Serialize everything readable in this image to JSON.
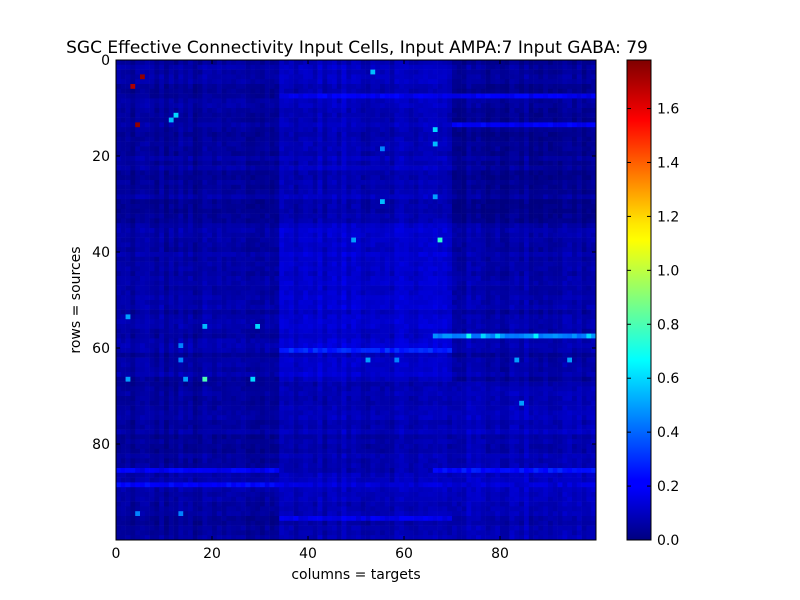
{
  "chart_data": {
    "type": "heatmap",
    "title": "SGC Effective Connectivity Input Cells, Input AMPA:7 Input GABA: 79",
    "xlabel": "columns = targets",
    "ylabel": "rows = sources",
    "x_range": [
      0,
      100
    ],
    "y_range": [
      0,
      100
    ],
    "y_inverted": true,
    "x_ticks": [
      "0",
      "20",
      "40",
      "60",
      "80"
    ],
    "y_ticks": [
      "0",
      "20",
      "40",
      "60",
      "80"
    ],
    "colorbar": {
      "colormap": "jet",
      "range": [
        0.0,
        1.78
      ],
      "ticks": [
        "0.0",
        "0.2",
        "0.4",
        "0.6",
        "0.8",
        "1.0",
        "1.2",
        "1.4",
        "1.6"
      ]
    },
    "background_level": 0.05,
    "block_structure": [
      {
        "rows": [
          0,
          34
        ],
        "cols": [
          0,
          34
        ],
        "value": 0.05
      },
      {
        "rows": [
          0,
          34
        ],
        "cols": [
          34,
          70
        ],
        "value": 0.1
      },
      {
        "rows": [
          0,
          34
        ],
        "cols": [
          70,
          100
        ],
        "value": 0.04
      },
      {
        "rows": [
          34,
          67
        ],
        "cols": [
          0,
          34
        ],
        "value": 0.06
      },
      {
        "rows": [
          34,
          67
        ],
        "cols": [
          34,
          70
        ],
        "value": 0.13
      },
      {
        "rows": [
          34,
          67
        ],
        "cols": [
          70,
          100
        ],
        "value": 0.07
      },
      {
        "rows": [
          67,
          100
        ],
        "cols": [
          0,
          34
        ],
        "value": 0.05
      },
      {
        "rows": [
          67,
          100
        ],
        "cols": [
          34,
          70
        ],
        "value": 0.09
      },
      {
        "rows": [
          67,
          100
        ],
        "cols": [
          70,
          100
        ],
        "value": 0.1
      }
    ],
    "row_bands": [
      {
        "row": 7,
        "cols": [
          34,
          100
        ],
        "value": 0.2
      },
      {
        "row": 13,
        "cols": [
          70,
          100
        ],
        "value": 0.2
      },
      {
        "row": 57,
        "cols": [
          66,
          100
        ],
        "value": 0.45
      },
      {
        "row": 60,
        "cols": [
          34,
          70
        ],
        "value": 0.28
      },
      {
        "row": 85,
        "cols": [
          0,
          34
        ],
        "value": 0.2
      },
      {
        "row": 85,
        "cols": [
          66,
          100
        ],
        "value": 0.25
      },
      {
        "row": 88,
        "cols": [
          0,
          34
        ],
        "value": 0.22
      },
      {
        "row": 88,
        "cols": [
          34,
          100
        ],
        "value": 0.15
      },
      {
        "row": 95,
        "cols": [
          34,
          70
        ],
        "value": 0.18
      }
    ],
    "highlight_cells": [
      {
        "row": 3,
        "col": 5,
        "value": 1.75
      },
      {
        "row": 5,
        "col": 3,
        "value": 1.7
      },
      {
        "row": 13,
        "col": 4,
        "value": 1.75
      },
      {
        "row": 11,
        "col": 12,
        "value": 0.6
      },
      {
        "row": 12,
        "col": 11,
        "value": 0.55
      },
      {
        "row": 2,
        "col": 53,
        "value": 0.55
      },
      {
        "row": 14,
        "col": 66,
        "value": 0.6
      },
      {
        "row": 17,
        "col": 66,
        "value": 0.55
      },
      {
        "row": 18,
        "col": 55,
        "value": 0.45
      },
      {
        "row": 28,
        "col": 66,
        "value": 0.5
      },
      {
        "row": 29,
        "col": 55,
        "value": 0.55
      },
      {
        "row": 37,
        "col": 67,
        "value": 0.75
      },
      {
        "row": 37,
        "col": 49,
        "value": 0.5
      },
      {
        "row": 53,
        "col": 2,
        "value": 0.5
      },
      {
        "row": 55,
        "col": 18,
        "value": 0.55
      },
      {
        "row": 55,
        "col": 29,
        "value": 0.6
      },
      {
        "row": 57,
        "col": 73,
        "value": 0.7
      },
      {
        "row": 57,
        "col": 76,
        "value": 0.6
      },
      {
        "row": 57,
        "col": 79,
        "value": 0.6
      },
      {
        "row": 57,
        "col": 87,
        "value": 0.65
      },
      {
        "row": 57,
        "col": 98,
        "value": 0.6
      },
      {
        "row": 59,
        "col": 13,
        "value": 0.45
      },
      {
        "row": 62,
        "col": 13,
        "value": 0.45
      },
      {
        "row": 62,
        "col": 52,
        "value": 0.5
      },
      {
        "row": 62,
        "col": 58,
        "value": 0.45
      },
      {
        "row": 62,
        "col": 83,
        "value": 0.5
      },
      {
        "row": 62,
        "col": 94,
        "value": 0.5
      },
      {
        "row": 66,
        "col": 2,
        "value": 0.5
      },
      {
        "row": 66,
        "col": 14,
        "value": 0.5
      },
      {
        "row": 66,
        "col": 18,
        "value": 0.8
      },
      {
        "row": 66,
        "col": 28,
        "value": 0.6
      },
      {
        "row": 71,
        "col": 84,
        "value": 0.5
      },
      {
        "row": 94,
        "col": 4,
        "value": 0.45
      },
      {
        "row": 94,
        "col": 13,
        "value": 0.45
      }
    ]
  }
}
